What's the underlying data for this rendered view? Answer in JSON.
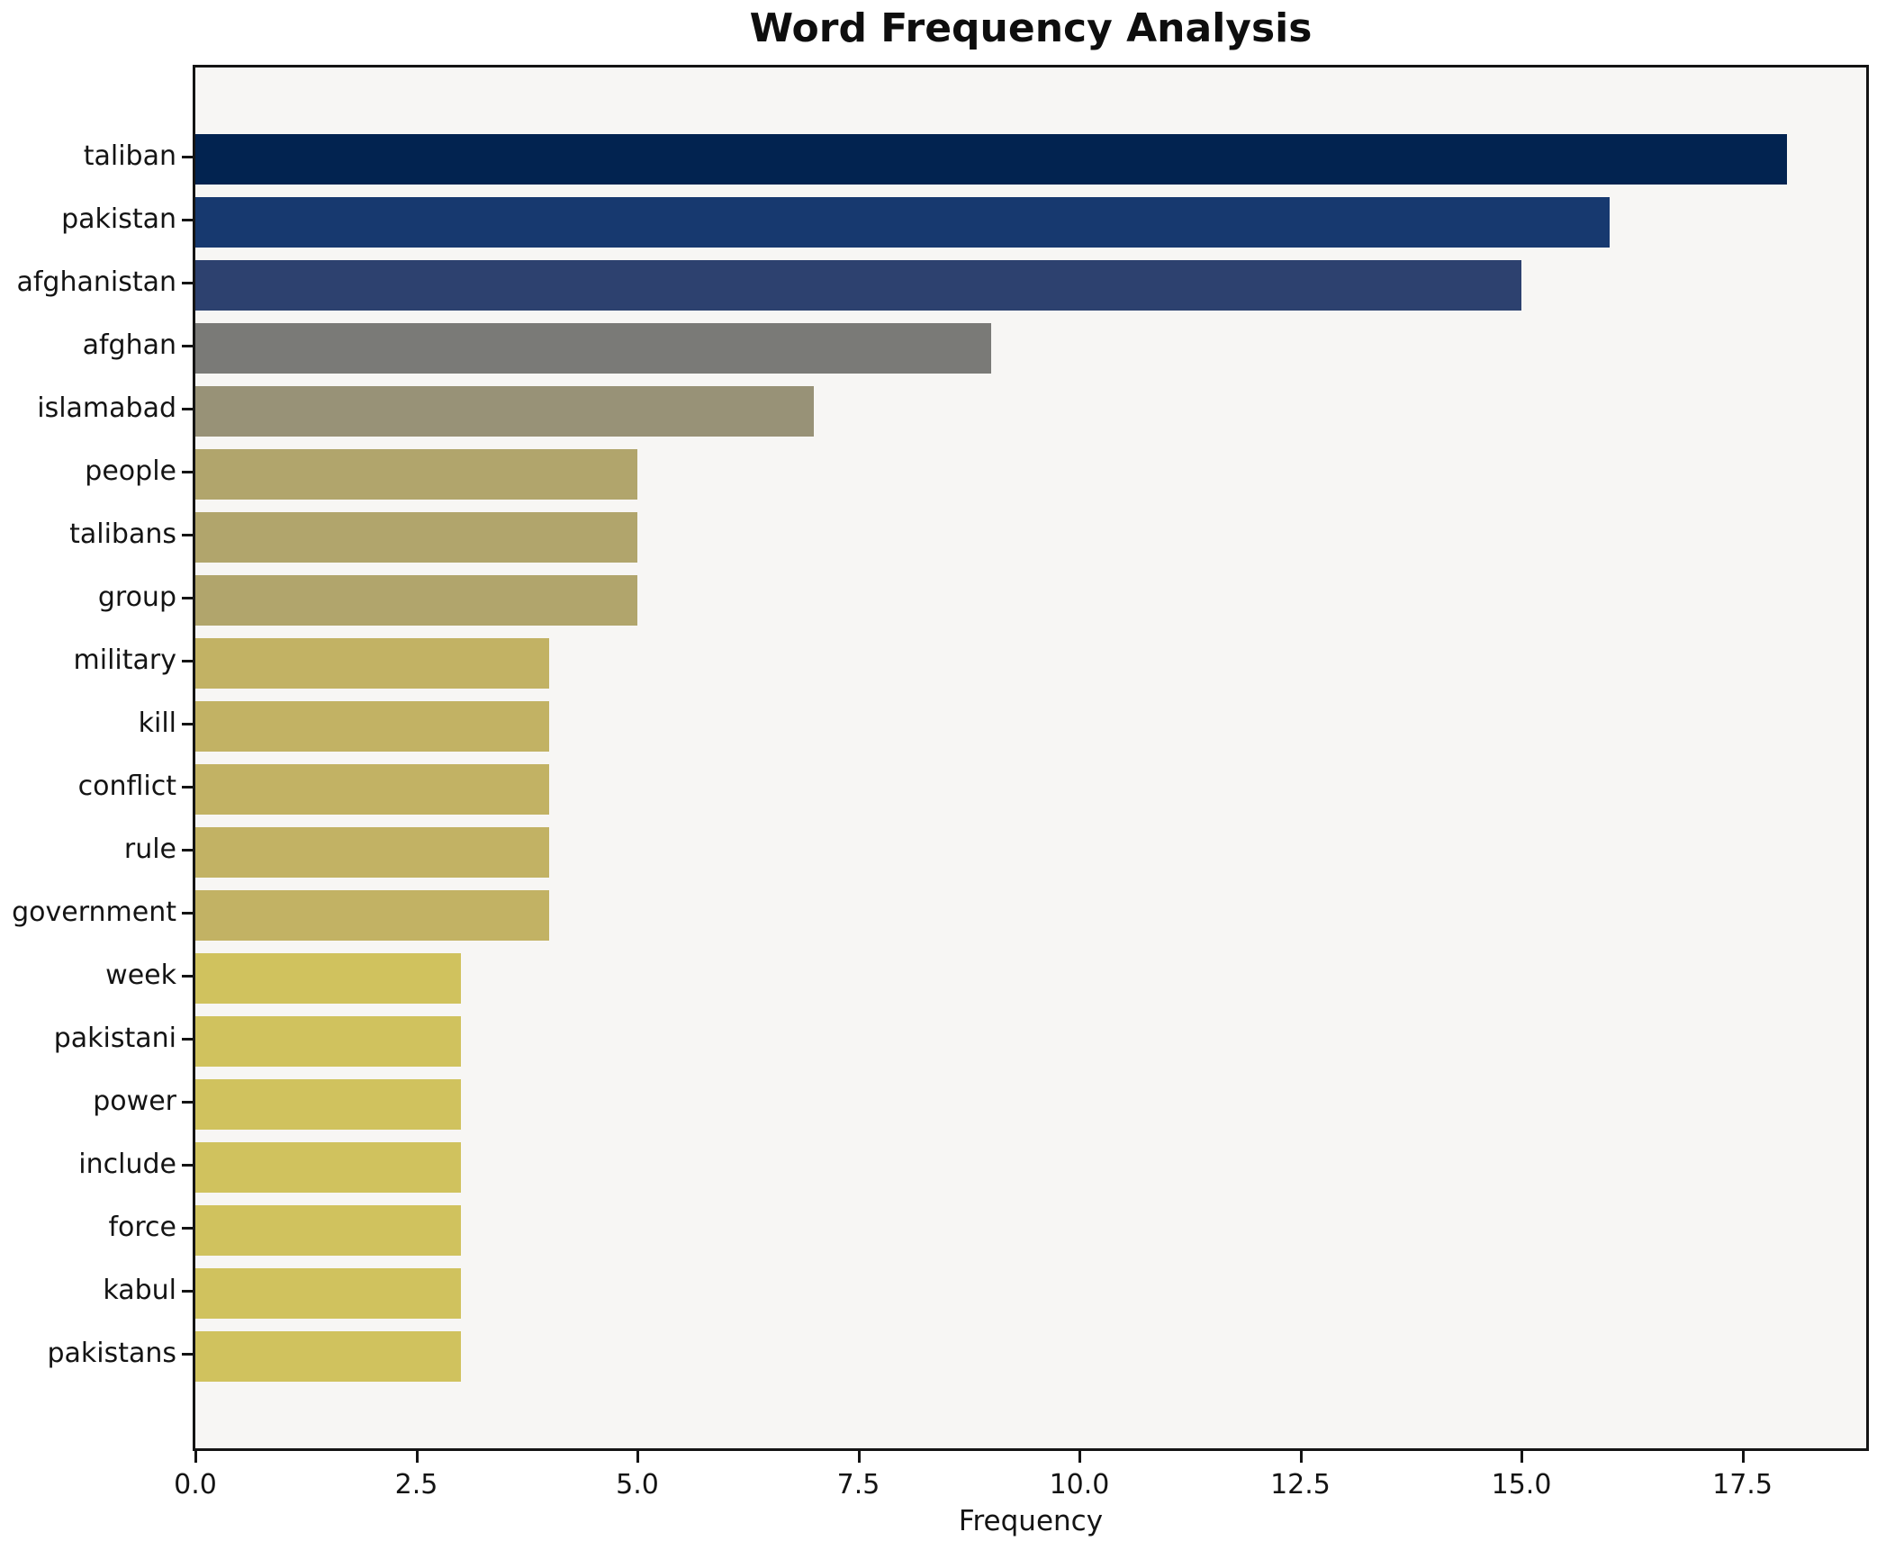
{
  "page_title": "Word Frequency Analysis",
  "chart_data": {
    "type": "bar",
    "orientation": "horizontal",
    "title": "Word Frequency Analysis",
    "xlabel": "Frequency",
    "ylabel": "",
    "xlim": [
      0,
      18.9
    ],
    "xticks": [
      0,
      2.5,
      5,
      7.5,
      10,
      12.5,
      15,
      17.5
    ],
    "xtick_labels": [
      "0.0",
      "2.5",
      "5.0",
      "7.5",
      "10.0",
      "12.5",
      "15.0",
      "17.5"
    ],
    "grid": false,
    "legend": null,
    "colors": {
      "figure_background": "#ffffff",
      "axes_background": "#f7f6f4",
      "spine": "#141414",
      "text": "#141414"
    },
    "categories": [
      "taliban",
      "pakistan",
      "afghanistan",
      "afghan",
      "islamabad",
      "people",
      "talibans",
      "group",
      "military",
      "kill",
      "conflict",
      "rule",
      "government",
      "week",
      "pakistani",
      "power",
      "include",
      "force",
      "kabul",
      "pakistans"
    ],
    "values": [
      18,
      16,
      15,
      9,
      7,
      5,
      5,
      5,
      4,
      4,
      4,
      4,
      4,
      3,
      3,
      3,
      3,
      3,
      3,
      3
    ],
    "bar_colors": [
      "#022350",
      "#17396f",
      "#2d416f",
      "#7a7a77",
      "#989277",
      "#b1a56c",
      "#b1a56c",
      "#b1a56c",
      "#c2b264",
      "#c2b264",
      "#c2b264",
      "#c2b264",
      "#c2b264",
      "#d0c25e",
      "#d0c25e",
      "#d0c25e",
      "#d0c25e",
      "#d0c25e",
      "#d0c25e",
      "#d0c25e"
    ]
  }
}
